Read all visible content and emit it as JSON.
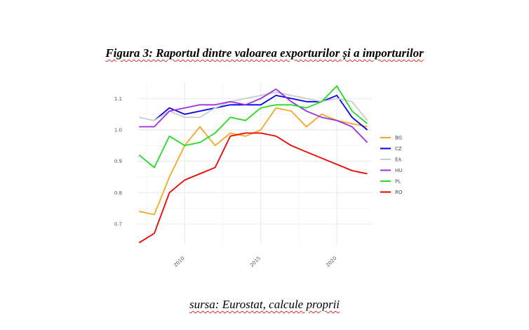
{
  "figure": {
    "title": "Figura 3: Raportul dintre valoarea exporturilor și a importurilor",
    "source": "sursa: Eurostat, calcule proprii"
  },
  "chart_data": {
    "type": "line",
    "title": "",
    "xlabel": "",
    "ylabel": "",
    "x": [
      2007,
      2008,
      2009,
      2010,
      2011,
      2012,
      2013,
      2014,
      2015,
      2016,
      2017,
      2018,
      2019,
      2020,
      2021,
      2022
    ],
    "xlim": [
      2006.9,
      2022.3
    ],
    "ylim": [
      0.635,
      1.15
    ],
    "x_ticks": [
      {
        "value": 2010,
        "label": "2010"
      },
      {
        "value": 2015,
        "label": "2015"
      },
      {
        "value": 2020,
        "label": "2020"
      }
    ],
    "y_ticks": [
      {
        "value": 0.7,
        "label": "0.7"
      },
      {
        "value": 0.8,
        "label": "0.8"
      },
      {
        "value": 0.9,
        "label": "0.9"
      },
      {
        "value": 1.0,
        "label": "1.0"
      },
      {
        "value": 1.1,
        "label": "1.1"
      }
    ],
    "grid": true,
    "legend_position": "right",
    "series": [
      {
        "name": "BG",
        "color": "#f5a623",
        "values": [
          0.74,
          0.73,
          0.85,
          0.95,
          1.01,
          0.95,
          0.99,
          0.98,
          1.0,
          1.07,
          1.06,
          1.01,
          1.05,
          1.03,
          1.02,
          1.01
        ]
      },
      {
        "name": "CZ",
        "color": "#0000ee",
        "values": [
          null,
          1.03,
          1.07,
          1.05,
          1.06,
          1.07,
          1.08,
          1.08,
          1.08,
          1.11,
          1.1,
          1.09,
          1.09,
          1.11,
          1.04,
          1.0
        ]
      },
      {
        "name": "EA",
        "color": "#cccccc",
        "values": [
          1.04,
          1.03,
          1.06,
          1.04,
          1.04,
          1.07,
          1.09,
          1.1,
          1.11,
          1.12,
          1.11,
          1.1,
          1.09,
          1.1,
          1.09,
          1.03
        ]
      },
      {
        "name": "HU",
        "color": "#9b30e6",
        "values": [
          1.01,
          1.01,
          1.06,
          1.07,
          1.08,
          1.08,
          1.09,
          1.08,
          1.1,
          1.13,
          1.09,
          1.06,
          1.04,
          1.03,
          1.01,
          0.96
        ]
      },
      {
        "name": "PL",
        "color": "#22dd22",
        "values": [
          0.92,
          0.88,
          0.98,
          0.95,
          0.96,
          0.99,
          1.04,
          1.03,
          1.07,
          1.08,
          1.08,
          1.07,
          1.09,
          1.14,
          1.06,
          1.02
        ]
      },
      {
        "name": "RO",
        "color": "#ee0000",
        "values": [
          0.64,
          0.67,
          0.8,
          0.84,
          0.86,
          0.88,
          0.98,
          0.99,
          0.99,
          0.98,
          0.95,
          0.93,
          0.91,
          0.89,
          0.87,
          0.86
        ]
      }
    ]
  }
}
